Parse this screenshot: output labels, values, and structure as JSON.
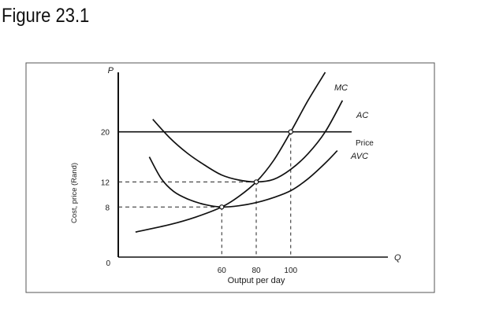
{
  "figure": {
    "title": "Figure 23.1"
  },
  "chart_data": {
    "type": "line",
    "ylabel": "Cost, price (Rand)",
    "xlabel": "Output per day",
    "y_axis_symbol": "P",
    "x_axis_symbol": "Q",
    "origin_label": "0",
    "xlim": [
      0,
      160
    ],
    "ylim": [
      0,
      30
    ],
    "y_ticks": [
      {
        "value": 8,
        "label": "8"
      },
      {
        "value": 12,
        "label": "12"
      },
      {
        "value": 20,
        "label": "20"
      }
    ],
    "x_ticks": [
      {
        "value": 60,
        "label": "60"
      },
      {
        "value": 80,
        "label": "80"
      },
      {
        "value": 100,
        "label": "100"
      }
    ],
    "series": [
      {
        "name": "MC",
        "points": [
          [
            10,
            4.0
          ],
          [
            30,
            5.2
          ],
          [
            45,
            6.4
          ],
          [
            60,
            8.0
          ],
          [
            70,
            9.7
          ],
          [
            80,
            12.0
          ],
          [
            90,
            15.4
          ],
          [
            100,
            20.0
          ],
          [
            110,
            25.0
          ],
          [
            120,
            29.5
          ]
        ]
      },
      {
        "name": "AC",
        "points": [
          [
            20,
            22.0
          ],
          [
            30,
            19.0
          ],
          [
            40,
            16.6
          ],
          [
            50,
            14.7
          ],
          [
            60,
            13.1
          ],
          [
            70,
            12.3
          ],
          [
            80,
            12.0
          ],
          [
            90,
            12.4
          ],
          [
            100,
            14.0
          ],
          [
            110,
            16.5
          ],
          [
            120,
            20.0
          ],
          [
            130,
            25.0
          ]
        ]
      },
      {
        "name": "Price",
        "points": [
          [
            0,
            20
          ],
          [
            130,
            20
          ]
        ]
      },
      {
        "name": "AVC",
        "points": [
          [
            18,
            16.0
          ],
          [
            25,
            12.5
          ],
          [
            32,
            10.5
          ],
          [
            40,
            9.3
          ],
          [
            50,
            8.4
          ],
          [
            60,
            8.0
          ],
          [
            70,
            8.2
          ],
          [
            80,
            8.7
          ],
          [
            90,
            9.5
          ],
          [
            100,
            10.6
          ],
          [
            110,
            12.5
          ],
          [
            120,
            15.0
          ],
          [
            127,
            17.0
          ]
        ]
      }
    ],
    "points_of_interest": [
      {
        "x": 60,
        "y": 8
      },
      {
        "x": 80,
        "y": 12
      },
      {
        "x": 100,
        "y": 20
      }
    ],
    "grid": false
  }
}
